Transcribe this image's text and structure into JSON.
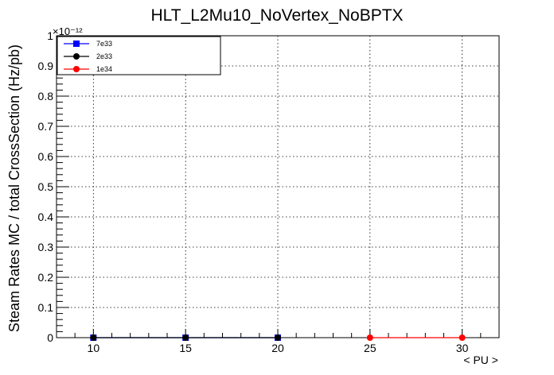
{
  "chart_data": {
    "type": "line",
    "title": "HLT_L2Mu10_NoVertex_NoBPTX",
    "xlabel": "< PU >",
    "ylabel": "Steam Rates MC / total CrossSection (Hz/pb)",
    "y_exponent_label": "×10⁻¹²",
    "xlim": [
      8,
      32
    ],
    "ylim": [
      0,
      1
    ],
    "x_ticks": [
      10,
      15,
      20,
      25,
      30
    ],
    "y_ticks": [
      0,
      0.1,
      0.2,
      0.3,
      0.4,
      0.5,
      0.6,
      0.7,
      0.8,
      0.9,
      1
    ],
    "grid": true,
    "legend_position": "top-left",
    "series": [
      {
        "name": "7e33",
        "marker": "square",
        "color": "#0000ff",
        "x": [
          10,
          15,
          20
        ],
        "y": [
          0,
          0,
          0
        ]
      },
      {
        "name": "2e33",
        "marker": "circle",
        "color": "#000000",
        "x": [
          10,
          15,
          20
        ],
        "y": [
          0,
          0,
          0
        ]
      },
      {
        "name": "1e34",
        "marker": "circle",
        "color": "#ff0000",
        "x": [
          25,
          30
        ],
        "y": [
          0,
          0
        ]
      }
    ]
  }
}
